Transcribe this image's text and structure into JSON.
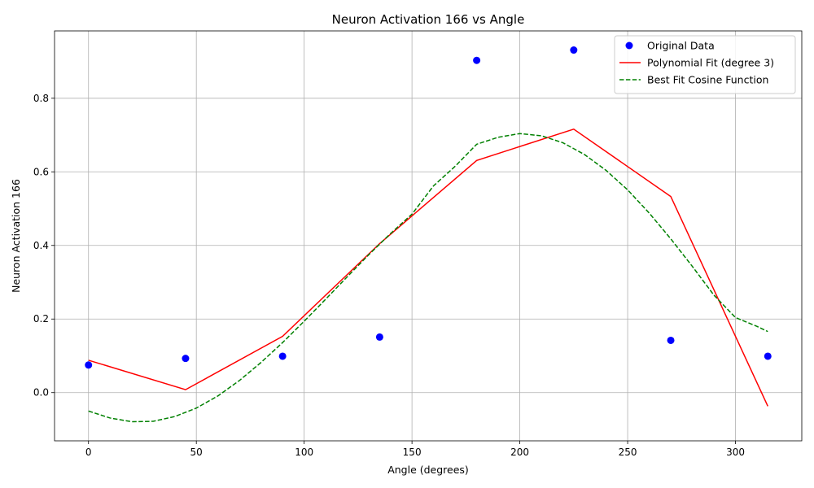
{
  "chart_data": {
    "type": "scatter",
    "title": "Neuron Activation 166 vs Angle",
    "xlabel": "Angle (degrees)",
    "ylabel": "Neuron Activation 166",
    "xlim": [
      -15.75,
      330.75
    ],
    "ylim": [
      -0.131,
      0.983
    ],
    "xticks": [
      0,
      50,
      100,
      150,
      200,
      250,
      300
    ],
    "yticks": [
      0.0,
      0.2,
      0.4,
      0.6,
      0.8
    ],
    "xtick_labels": [
      "0",
      "50",
      "100",
      "150",
      "200",
      "250",
      "300"
    ],
    "ytick_labels": [
      "0.0",
      "0.2",
      "0.4",
      "0.6",
      "0.8"
    ],
    "grid": true,
    "legend_position": "top-right",
    "series": [
      {
        "name": "Original Data",
        "kind": "scatter",
        "color": "#0000ff",
        "x": [
          0,
          45,
          90,
          135,
          180,
          225,
          270,
          315
        ],
        "y": [
          0.075,
          0.093,
          0.099,
          0.151,
          0.903,
          0.931,
          0.142,
          0.099
        ]
      },
      {
        "name": "Polynomial Fit (degree 3)",
        "kind": "line",
        "color": "#ff0000",
        "dash": "solid",
        "x": [
          0,
          45,
          90,
          135,
          180,
          225,
          270,
          315
        ],
        "y": [
          0.088,
          0.008,
          0.153,
          0.405,
          0.631,
          0.716,
          0.533,
          -0.037
        ]
      },
      {
        "name": "Best Fit Cosine Function",
        "kind": "line",
        "color": "#008000",
        "dash": "dashed",
        "x": [
          0,
          10,
          20,
          30,
          40,
          50,
          60,
          70,
          80,
          90,
          100,
          110,
          120,
          130,
          140,
          150,
          160,
          170,
          180,
          190,
          200,
          210,
          220,
          230,
          240,
          250,
          260,
          270,
          280,
          290,
          300,
          310,
          315
        ],
        "y": [
          -0.05,
          -0.069,
          -0.079,
          -0.078,
          -0.065,
          -0.042,
          -0.009,
          0.033,
          0.082,
          0.136,
          0.194,
          0.254,
          0.315,
          0.375,
          0.432,
          0.485,
          0.562,
          0.615,
          0.675,
          0.694,
          0.704,
          0.698,
          0.679,
          0.647,
          0.604,
          0.551,
          0.488,
          0.418,
          0.343,
          0.265,
          0.204,
          0.18,
          0.166
        ]
      }
    ]
  }
}
